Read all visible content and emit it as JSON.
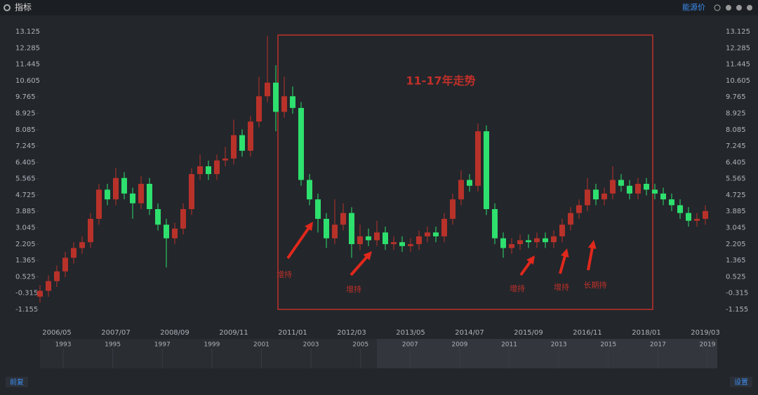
{
  "header": {
    "title": "指标",
    "link": "能源价"
  },
  "chart_data": {
    "type": "candlestick",
    "categories": [
      null,
      null,
      "2006/05",
      null,
      null,
      null,
      null,
      null,
      null,
      "2007/07",
      null,
      null,
      null,
      null,
      null,
      null,
      "2008/09",
      null,
      null,
      null,
      null,
      null,
      null,
      "2009/11",
      null,
      null,
      null,
      null,
      null,
      null,
      "2011/01",
      null,
      null,
      null,
      null,
      null,
      null,
      "2012/03",
      null,
      null,
      null,
      null,
      null,
      null,
      "2013/05",
      null,
      null,
      null,
      null,
      null,
      null,
      "2014/07",
      null,
      null,
      null,
      null,
      null,
      null,
      "2015/09",
      null,
      null,
      null,
      null,
      null,
      null,
      "2016/11",
      null,
      null,
      null,
      null,
      null,
      null,
      "2018/01",
      null,
      null,
      null,
      null,
      null,
      null,
      "2019/03"
    ],
    "open": [
      -0.5,
      -0.2,
      0.3,
      0.8,
      1.5,
      2.0,
      2.3,
      3.5,
      5.0,
      4.5,
      5.6,
      4.8,
      4.3,
      5.3,
      4.0,
      3.2,
      2.5,
      3.0,
      4.0,
      5.8,
      6.2,
      5.8,
      6.5,
      6.6,
      7.8,
      7.0,
      8.5,
      9.8,
      10.5,
      9.0,
      9.8,
      9.2,
      5.5,
      4.5,
      3.5,
      2.5,
      3.2,
      3.8,
      2.2,
      2.6,
      2.4,
      2.8,
      2.2,
      2.3,
      2.1,
      2.2,
      2.6,
      2.8,
      2.6,
      3.5,
      4.5,
      5.5,
      5.2,
      8.0,
      4.0,
      2.5,
      2.0,
      2.2,
      2.4,
      2.3,
      2.5,
      2.3,
      2.6,
      3.2,
      3.8,
      4.2,
      5.0,
      4.5,
      4.8,
      5.5,
      5.2,
      4.8,
      5.3,
      5.0,
      4.8,
      4.5,
      4.2,
      3.8,
      3.4,
      3.5
    ],
    "high": [
      0.1,
      0.6,
      1.1,
      1.8,
      2.3,
      2.6,
      3.8,
      5.3,
      5.3,
      6.1,
      5.9,
      5.1,
      5.7,
      5.6,
      4.3,
      3.5,
      3.3,
      4.3,
      6.1,
      6.8,
      6.5,
      6.8,
      7.2,
      8.6,
      8.1,
      8.8,
      10.8,
      12.9,
      11.4,
      10.8,
      10.3,
      9.5,
      5.8,
      4.8,
      3.8,
      4.5,
      4.3,
      4.1,
      3.2,
      3.0,
      3.4,
      3.1,
      2.6,
      2.6,
      2.5,
      2.9,
      3.1,
      3.1,
      3.8,
      4.8,
      6.0,
      5.8,
      8.4,
      8.3,
      4.3,
      2.8,
      2.5,
      2.7,
      2.7,
      2.8,
      2.8,
      2.9,
      3.5,
      4.1,
      4.5,
      5.6,
      5.3,
      5.1,
      6.2,
      5.8,
      5.5,
      5.6,
      5.6,
      5.3,
      5.1,
      4.8,
      4.5,
      4.1,
      3.8,
      4.2
    ],
    "low": [
      -0.8,
      -0.5,
      0.0,
      0.5,
      1.2,
      1.7,
      2.0,
      3.2,
      4.2,
      4.2,
      4.5,
      3.5,
      4.0,
      3.7,
      2.9,
      1.0,
      2.2,
      2.7,
      3.7,
      5.5,
      5.5,
      5.5,
      6.2,
      6.3,
      6.7,
      6.7,
      8.2,
      9.5,
      8.0,
      8.7,
      8.9,
      5.2,
      4.2,
      2.8,
      2.0,
      2.2,
      2.9,
      1.5,
      1.9,
      2.1,
      2.1,
      1.9,
      1.9,
      1.8,
      1.8,
      1.9,
      2.3,
      2.3,
      2.3,
      3.2,
      4.2,
      4.9,
      4.9,
      3.7,
      2.2,
      1.5,
      1.7,
      1.9,
      2.0,
      2.0,
      2.0,
      2.0,
      2.3,
      2.9,
      3.5,
      3.9,
      4.2,
      4.2,
      4.5,
      4.9,
      4.5,
      4.5,
      4.7,
      4.5,
      4.2,
      3.9,
      3.5,
      3.1,
      3.1,
      3.2
    ],
    "close": [
      -0.2,
      0.3,
      0.8,
      1.5,
      2.0,
      2.3,
      3.5,
      5.0,
      4.5,
      5.6,
      4.8,
      4.3,
      5.3,
      4.0,
      3.2,
      2.5,
      3.0,
      4.0,
      5.8,
      6.2,
      5.8,
      6.5,
      6.6,
      7.8,
      7.0,
      8.5,
      9.8,
      10.5,
      9.0,
      9.8,
      9.2,
      5.5,
      4.5,
      3.5,
      2.5,
      3.2,
      3.8,
      2.2,
      2.6,
      2.4,
      2.8,
      2.2,
      2.3,
      2.1,
      2.2,
      2.6,
      2.8,
      2.6,
      3.5,
      4.5,
      5.5,
      5.2,
      8.0,
      4.0,
      2.5,
      2.0,
      2.2,
      2.4,
      2.3,
      2.5,
      2.3,
      2.6,
      3.2,
      3.8,
      4.2,
      5.0,
      4.5,
      4.8,
      5.5,
      5.2,
      4.8,
      5.3,
      5.0,
      4.8,
      4.5,
      4.2,
      3.8,
      3.4,
      3.5,
      3.9
    ],
    "up_color": "#b8322a",
    "down_color": "#2ee06e",
    "ylim": [
      -1.155,
      13.125
    ],
    "yticks": [
      13.125,
      12.285,
      11.445,
      10.605,
      9.765,
      8.925,
      8.085,
      7.245,
      6.405,
      5.565,
      4.725,
      3.885,
      3.045,
      2.205,
      1.365,
      0.525,
      -0.315,
      -1.155
    ],
    "box_title": "11-17年走势",
    "annotations": [
      "增持",
      "增持",
      "增持",
      "增持",
      "长期持"
    ]
  },
  "navigator": {
    "labels": [
      "1993",
      "1995",
      "1997",
      "1999",
      "2001",
      "2003",
      "2005",
      "2007",
      "2009",
      "2011",
      "2013",
      "2015",
      "2017",
      "2019"
    ]
  },
  "footer": {
    "left": "前复",
    "right": "设置"
  }
}
